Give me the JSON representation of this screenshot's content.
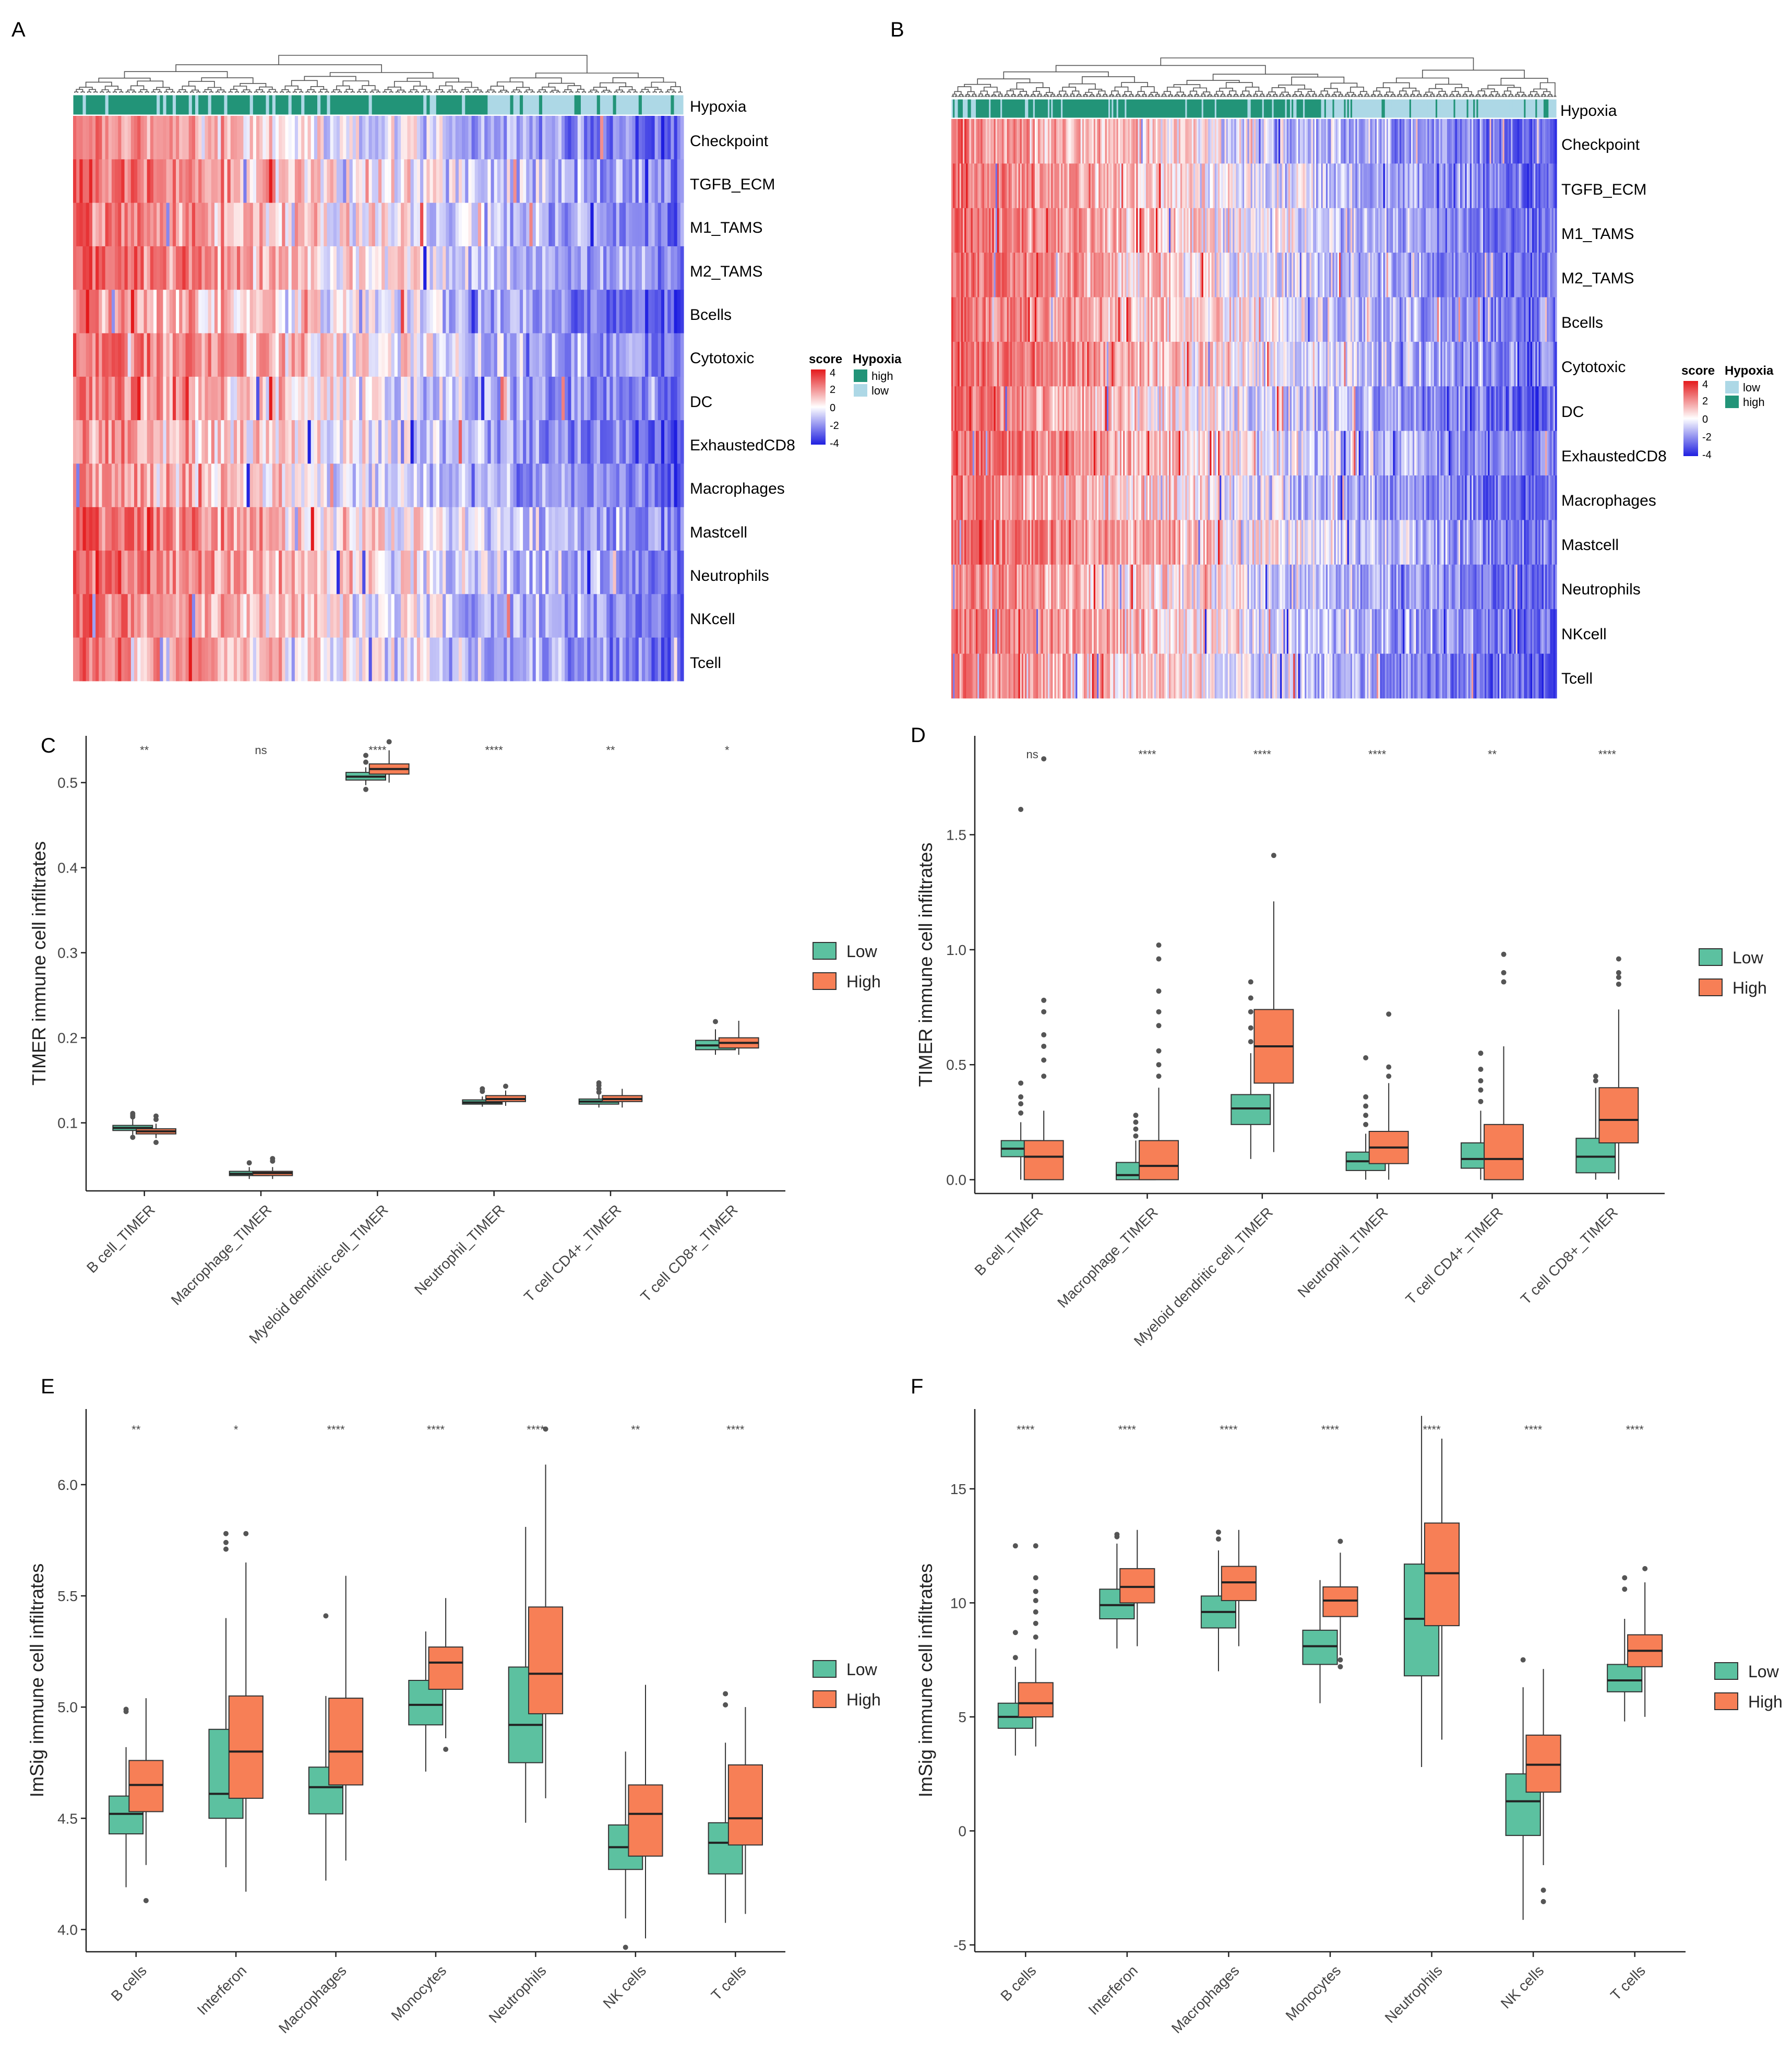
{
  "figure": {
    "panel_letters": [
      "A",
      "B",
      "C",
      "D",
      "E",
      "F"
    ]
  },
  "colors": {
    "low_box": "#5cc1a0",
    "high_box": "#f77f56",
    "hyp_dark": "#229478",
    "hyp_light": "#add8e6",
    "heat_red": "#e41a1c",
    "heat_blue": "#1f1fe0"
  },
  "chart_data": [
    {
      "panel": "A",
      "type": "heatmap",
      "annotation_label": "Hypoxia",
      "rows": [
        "Checkpoint",
        "TGFB_ECM",
        "M1_TAMS",
        "M2_TAMS",
        "Bcells",
        "Cytotoxic",
        "DC",
        "ExhaustedCD8",
        "Macrophages",
        "Mastcell",
        "Neutrophils",
        "NKcell",
        "Tcell"
      ],
      "n_samples": 190,
      "high_fraction": 0.68,
      "seed": 7,
      "score_range": [
        -4,
        4
      ],
      "legend": {
        "score_title": "score",
        "score_ticks": [
          "4",
          "2",
          "0",
          "-2",
          "-4"
        ],
        "group_title": "Hypoxia",
        "group_items": [
          {
            "label": "high",
            "color": "#229478"
          },
          {
            "label": "low",
            "color": "#add8e6"
          }
        ]
      }
    },
    {
      "panel": "B",
      "type": "heatmap",
      "annotation_label": "Hypoxia",
      "rows": [
        "Checkpoint",
        "TGFB_ECM",
        "M1_TAMS",
        "M2_TAMS",
        "Bcells",
        "Cytotoxic",
        "DC",
        "ExhaustedCD8",
        "Macrophages",
        "Mastcell",
        "Neutrophils",
        "NKcell",
        "Tcell"
      ],
      "n_samples": 370,
      "high_fraction": 0.62,
      "seed": 23,
      "score_range": [
        -4,
        4
      ],
      "legend": {
        "score_title": "score",
        "score_ticks": [
          "4",
          "2",
          "0",
          "-2",
          "-4"
        ],
        "group_title": "Hypoxia",
        "group_items": [
          {
            "label": "low",
            "color": "#add8e6"
          },
          {
            "label": "high",
            "color": "#229478"
          }
        ]
      }
    },
    {
      "panel": "C",
      "type": "boxplot",
      "ylabel": "TIMER immune cell infiltrates",
      "ylim": [
        0.02,
        0.555
      ],
      "yticks": [
        0.1,
        0.2,
        0.3,
        0.4,
        0.5
      ],
      "ytick_labels": [
        "0.1",
        "0.2",
        "0.3",
        "0.4",
        "0.5"
      ],
      "categories": [
        "B cell_TIMER",
        "Macrophage_TIMER",
        "Myeloid dendritic cell_TIMER",
        "Neutrophil_TIMER",
        "T cell CD4+_TIMER",
        "T cell CD8+_TIMER"
      ],
      "significance": [
        "**",
        "ns",
        "****",
        "****",
        "**",
        "*"
      ],
      "legend": [
        "Low",
        "High"
      ],
      "series": [
        {
          "name": "Low",
          "boxes": [
            {
              "q1": 0.091,
              "med": 0.094,
              "q3": 0.097,
              "lo": 0.086,
              "hi": 0.104,
              "out": [
                0.083,
                0.107,
                0.109,
                0.111
              ]
            },
            {
              "q1": 0.038,
              "med": 0.04,
              "q3": 0.043,
              "lo": 0.034,
              "hi": 0.048,
              "out": [
                0.053
              ]
            },
            {
              "q1": 0.503,
              "med": 0.507,
              "q3": 0.512,
              "lo": 0.497,
              "hi": 0.518,
              "out": [
                0.492,
                0.524,
                0.532
              ]
            },
            {
              "q1": 0.122,
              "med": 0.124,
              "q3": 0.127,
              "lo": 0.119,
              "hi": 0.131,
              "out": [
                0.137,
                0.14
              ]
            },
            {
              "q1": 0.122,
              "med": 0.125,
              "q3": 0.128,
              "lo": 0.118,
              "hi": 0.133,
              "out": [
                0.136,
                0.14,
                0.144,
                0.147
              ]
            },
            {
              "q1": 0.186,
              "med": 0.191,
              "q3": 0.197,
              "lo": 0.18,
              "hi": 0.21,
              "out": [
                0.219
              ]
            }
          ]
        },
        {
          "name": "High",
          "boxes": [
            {
              "q1": 0.087,
              "med": 0.09,
              "q3": 0.093,
              "lo": 0.082,
              "hi": 0.099,
              "out": [
                0.077,
                0.104,
                0.108
              ]
            },
            {
              "q1": 0.038,
              "med": 0.041,
              "q3": 0.043,
              "lo": 0.034,
              "hi": 0.048,
              "out": [
                0.055,
                0.058
              ]
            },
            {
              "q1": 0.51,
              "med": 0.516,
              "q3": 0.522,
              "lo": 0.5,
              "hi": 0.538,
              "out": [
                0.548
              ]
            },
            {
              "q1": 0.125,
              "med": 0.128,
              "q3": 0.132,
              "lo": 0.12,
              "hi": 0.138,
              "out": [
                0.143
              ]
            },
            {
              "q1": 0.125,
              "med": 0.128,
              "q3": 0.132,
              "lo": 0.118,
              "hi": 0.14,
              "out": []
            },
            {
              "q1": 0.188,
              "med": 0.194,
              "q3": 0.2,
              "lo": 0.18,
              "hi": 0.22,
              "out": []
            }
          ]
        }
      ]
    },
    {
      "panel": "D",
      "type": "boxplot",
      "ylabel": "TIMER immune cell infiltrates",
      "ylim": [
        -0.06,
        1.93
      ],
      "yticks": [
        0.0,
        0.5,
        1.0,
        1.5
      ],
      "ytick_labels": [
        "0.0",
        "0.5",
        "1.0",
        "1.5"
      ],
      "categories": [
        "B cell_TIMER",
        "Macrophage_TIMER",
        "Myeloid dendritic cell_TIMER",
        "Neutrophil_TIMER",
        "T cell CD4+_TIMER",
        "T cell CD8+_TIMER"
      ],
      "significance": [
        "ns",
        "****",
        "****",
        "****",
        "**",
        "****"
      ],
      "legend": [
        "Low",
        "High"
      ],
      "series": [
        {
          "name": "Low",
          "boxes": [
            {
              "q1": 0.1,
              "med": 0.135,
              "q3": 0.17,
              "lo": 0.0,
              "hi": 0.25,
              "out": [
                0.29,
                0.33,
                0.36,
                0.42,
                1.61
              ]
            },
            {
              "q1": 0.0,
              "med": 0.02,
              "q3": 0.075,
              "lo": 0.0,
              "hi": 0.17,
              "out": [
                0.19,
                0.22,
                0.25,
                0.28
              ]
            },
            {
              "q1": 0.24,
              "med": 0.31,
              "q3": 0.37,
              "lo": 0.09,
              "hi": 0.55,
              "out": [
                0.6,
                0.66,
                0.73,
                0.79,
                0.86
              ]
            },
            {
              "q1": 0.04,
              "med": 0.08,
              "q3": 0.12,
              "lo": 0.0,
              "hi": 0.2,
              "out": [
                0.24,
                0.28,
                0.32,
                0.36,
                0.53
              ]
            },
            {
              "q1": 0.05,
              "med": 0.09,
              "q3": 0.16,
              "lo": 0.0,
              "hi": 0.3,
              "out": [
                0.34,
                0.39,
                0.43,
                0.48,
                0.55
              ]
            },
            {
              "q1": 0.03,
              "med": 0.1,
              "q3": 0.18,
              "lo": 0.0,
              "hi": 0.4,
              "out": [
                0.43,
                0.45
              ]
            }
          ]
        },
        {
          "name": "High",
          "boxes": [
            {
              "q1": 0.0,
              "med": 0.1,
              "q3": 0.17,
              "lo": 0.0,
              "hi": 0.3,
              "out": [
                0.45,
                0.52,
                0.58,
                0.63,
                0.73,
                0.78,
                1.83
              ]
            },
            {
              "q1": 0.0,
              "med": 0.06,
              "q3": 0.17,
              "lo": 0.0,
              "hi": 0.4,
              "out": [
                0.45,
                0.5,
                0.56,
                0.67,
                0.73,
                0.82,
                0.96,
                1.02
              ]
            },
            {
              "q1": 0.42,
              "med": 0.58,
              "q3": 0.74,
              "lo": 0.12,
              "hi": 1.21,
              "out": [
                1.41
              ]
            },
            {
              "q1": 0.07,
              "med": 0.14,
              "q3": 0.21,
              "lo": 0.0,
              "hi": 0.42,
              "out": [
                0.45,
                0.49,
                0.72
              ]
            },
            {
              "q1": 0.0,
              "med": 0.09,
              "q3": 0.24,
              "lo": 0.0,
              "hi": 0.58,
              "out": [
                0.86,
                0.9,
                0.98
              ]
            },
            {
              "q1": 0.16,
              "med": 0.26,
              "q3": 0.4,
              "lo": 0.0,
              "hi": 0.74,
              "out": [
                0.85,
                0.88,
                0.9,
                0.96
              ]
            }
          ]
        }
      ]
    },
    {
      "panel": "E",
      "type": "boxplot",
      "ylabel": "ImSig immune cell infiltrates",
      "ylim": [
        3.9,
        6.34
      ],
      "yticks": [
        4.0,
        4.5,
        5.0,
        5.5,
        6.0
      ],
      "ytick_labels": [
        "4.0",
        "4.5",
        "5.0",
        "5.5",
        "6.0"
      ],
      "categories": [
        "B cells",
        "Interferon",
        "Macrophages",
        "Monocytes",
        "Neutrophils",
        "NK cells",
        "T cells"
      ],
      "significance": [
        "**",
        "*",
        "****",
        "****",
        "****",
        "**",
        "****"
      ],
      "legend": [
        "Low",
        "High"
      ],
      "series": [
        {
          "name": "Low",
          "boxes": [
            {
              "q1": 4.43,
              "med": 4.52,
              "q3": 4.6,
              "lo": 4.19,
              "hi": 4.82,
              "out": [
                4.98,
                4.99
              ]
            },
            {
              "q1": 4.5,
              "med": 4.61,
              "q3": 4.9,
              "lo": 4.28,
              "hi": 5.4,
              "out": [
                5.71,
                5.74,
                5.78
              ]
            },
            {
              "q1": 4.52,
              "med": 4.64,
              "q3": 4.73,
              "lo": 4.22,
              "hi": 5.05,
              "out": [
                5.41
              ]
            },
            {
              "q1": 4.92,
              "med": 5.01,
              "q3": 5.12,
              "lo": 4.71,
              "hi": 5.34,
              "out": []
            },
            {
              "q1": 4.75,
              "med": 4.92,
              "q3": 5.18,
              "lo": 4.48,
              "hi": 5.81,
              "out": []
            },
            {
              "q1": 4.27,
              "med": 4.37,
              "q3": 4.47,
              "lo": 4.05,
              "hi": 4.8,
              "out": [
                3.92
              ]
            },
            {
              "q1": 4.25,
              "med": 4.39,
              "q3": 4.48,
              "lo": 4.03,
              "hi": 4.84,
              "out": [
                5.01,
                5.06
              ]
            }
          ]
        },
        {
          "name": "High",
          "boxes": [
            {
              "q1": 4.53,
              "med": 4.65,
              "q3": 4.76,
              "lo": 4.29,
              "hi": 5.04,
              "out": [
                4.13
              ]
            },
            {
              "q1": 4.59,
              "med": 4.8,
              "q3": 5.05,
              "lo": 4.17,
              "hi": 5.65,
              "out": [
                5.78
              ]
            },
            {
              "q1": 4.65,
              "med": 4.8,
              "q3": 5.04,
              "lo": 4.31,
              "hi": 5.59,
              "out": []
            },
            {
              "q1": 5.08,
              "med": 5.2,
              "q3": 5.27,
              "lo": 4.86,
              "hi": 5.49,
              "out": [
                4.81
              ]
            },
            {
              "q1": 4.97,
              "med": 5.15,
              "q3": 5.45,
              "lo": 4.59,
              "hi": 6.09,
              "out": [
                6.25
              ]
            },
            {
              "q1": 4.33,
              "med": 4.52,
              "q3": 4.65,
              "lo": 3.96,
              "hi": 5.1,
              "out": []
            },
            {
              "q1": 4.38,
              "med": 4.5,
              "q3": 4.74,
              "lo": 4.07,
              "hi": 5.0,
              "out": []
            }
          ]
        }
      ]
    },
    {
      "panel": "F",
      "type": "boxplot",
      "ylabel": "ImSig immune cell infiltrates",
      "ylim": [
        -5.3,
        18.5
      ],
      "yticks": [
        -5,
        0,
        5,
        10,
        15
      ],
      "ytick_labels": [
        "-5",
        "0",
        "5",
        "10",
        "15"
      ],
      "categories": [
        "B cells",
        "Interferon",
        "Macrophages",
        "Monocytes",
        "Neutrophils",
        "NK cells",
        "T cells"
      ],
      "significance": [
        "****",
        "****",
        "****",
        "****",
        "****",
        "****",
        "****"
      ],
      "legend": [
        "Low",
        "High"
      ],
      "series": [
        {
          "name": "Low",
          "boxes": [
            {
              "q1": 4.5,
              "med": 5.0,
              "q3": 5.6,
              "lo": 3.3,
              "hi": 7.2,
              "out": [
                7.6,
                8.7,
                12.5
              ]
            },
            {
              "q1": 9.3,
              "med": 9.9,
              "q3": 10.6,
              "lo": 8.0,
              "hi": 12.6,
              "out": [
                12.9,
                13.0
              ]
            },
            {
              "q1": 8.9,
              "med": 9.6,
              "q3": 10.3,
              "lo": 7.0,
              "hi": 12.3,
              "out": [
                12.8,
                13.1
              ]
            },
            {
              "q1": 7.3,
              "med": 8.1,
              "q3": 8.8,
              "lo": 5.6,
              "hi": 11.0,
              "out": []
            },
            {
              "q1": 6.8,
              "med": 9.3,
              "q3": 11.7,
              "lo": 2.8,
              "hi": 18.2,
              "out": []
            },
            {
              "q1": -0.2,
              "med": 1.3,
              "q3": 2.5,
              "lo": -3.9,
              "hi": 6.3,
              "out": [
                7.5
              ]
            },
            {
              "q1": 6.1,
              "med": 6.6,
              "q3": 7.3,
              "lo": 4.8,
              "hi": 9.3,
              "out": [
                10.6,
                11.1
              ]
            }
          ]
        },
        {
          "name": "High",
          "boxes": [
            {
              "q1": 5.0,
              "med": 5.6,
              "q3": 6.5,
              "lo": 3.7,
              "hi": 8.0,
              "out": [
                8.5,
                9.1,
                9.6,
                10.1,
                10.5,
                11.1,
                12.5
              ]
            },
            {
              "q1": 10.0,
              "med": 10.7,
              "q3": 11.5,
              "lo": 8.1,
              "hi": 13.2,
              "out": []
            },
            {
              "q1": 10.1,
              "med": 10.9,
              "q3": 11.6,
              "lo": 8.1,
              "hi": 13.2,
              "out": []
            },
            {
              "q1": 9.4,
              "med": 10.1,
              "q3": 10.7,
              "lo": 7.7,
              "hi": 12.2,
              "out": [
                7.2,
                7.5,
                12.7
              ]
            },
            {
              "q1": 9.0,
              "med": 11.3,
              "q3": 13.5,
              "lo": 4.0,
              "hi": 17.2,
              "out": []
            },
            {
              "q1": 1.7,
              "med": 2.9,
              "q3": 4.2,
              "lo": -1.5,
              "hi": 7.1,
              "out": [
                -2.6,
                -3.1
              ]
            },
            {
              "q1": 7.2,
              "med": 7.9,
              "q3": 8.6,
              "lo": 5.0,
              "hi": 10.9,
              "out": [
                11.5
              ]
            }
          ]
        }
      ]
    }
  ]
}
